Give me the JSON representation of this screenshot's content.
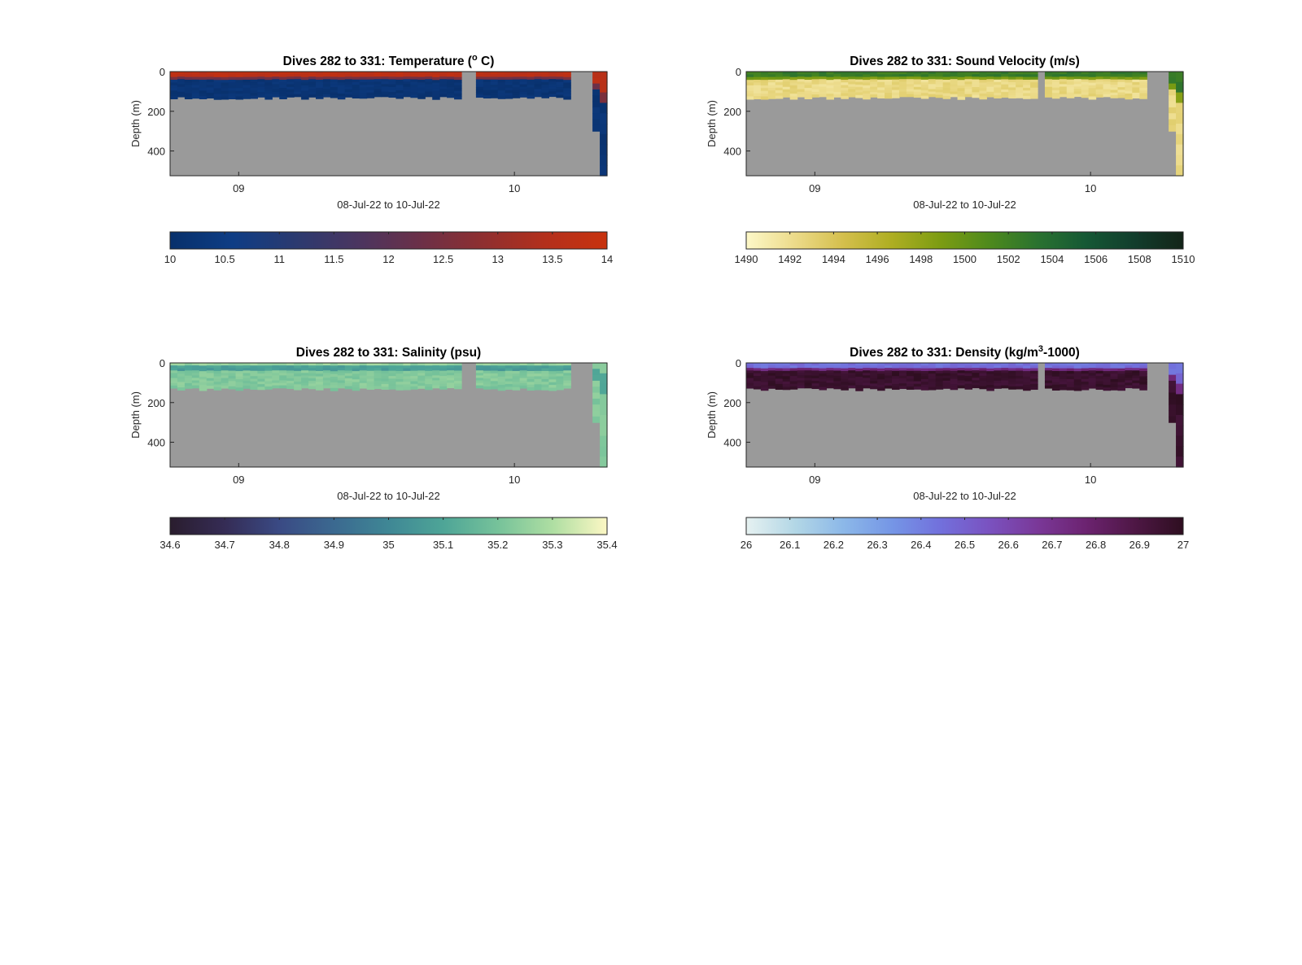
{
  "figure": {
    "background": "#ffffff"
  },
  "chart_data": [
    {
      "type": "heatmap",
      "title_main": "Dives 282 to 331: Temperature (",
      "title_sup": "o",
      "title_tail": " C)",
      "xlabel": "08-Jul-22 to 10-Jul-22",
      "ylabel": "Depth (m)",
      "xticks": [
        "09",
        "10"
      ],
      "yticks": [
        0,
        200,
        400
      ],
      "ylim": [
        525,
        0
      ],
      "colorbar_ticks": [
        "10",
        "10.5",
        "11",
        "11.5",
        "12",
        "12.5",
        "13",
        "13.5",
        "14"
      ],
      "colorbar_range": [
        10,
        14
      ],
      "colormap": [
        "#08306b",
        "#0e3d85",
        "#2b3a70",
        "#4a3560",
        "#6b3048",
        "#8e2f30",
        "#b3301c",
        "#c8320e"
      ],
      "nodata_color": "#9a9a9a"
    },
    {
      "type": "heatmap",
      "title_main": "Dives 282 to 331: Sound Velocity (m/s)",
      "title_sup": "",
      "title_tail": "",
      "xlabel": "08-Jul-22 to 10-Jul-22",
      "ylabel": "Depth (m)",
      "xticks": [
        "09",
        "10"
      ],
      "yticks": [
        0,
        200,
        400
      ],
      "ylim": [
        525,
        0
      ],
      "colorbar_ticks": [
        "1490",
        "1492",
        "1494",
        "1496",
        "1498",
        "1500",
        "1502",
        "1504",
        "1506",
        "1508",
        "1510"
      ],
      "colorbar_range": [
        1490,
        1510
      ],
      "colormap": [
        "#fdf8c8",
        "#ecdb8a",
        "#d4bf4c",
        "#aeae22",
        "#7c9c12",
        "#4e8a1c",
        "#2a7230",
        "#155835",
        "#123d2c",
        "#132418"
      ],
      "nodata_color": "#9a9a9a"
    },
    {
      "type": "heatmap",
      "title_main": "Dives 282 to 331: Salinity (psu)",
      "title_sup": "",
      "title_tail": "",
      "xlabel": "08-Jul-22 to 10-Jul-22",
      "ylabel": "Depth (m)",
      "xticks": [
        "09",
        "10"
      ],
      "yticks": [
        0,
        200,
        400
      ],
      "ylim": [
        525,
        0
      ],
      "colorbar_ticks": [
        "34.6",
        "34.7",
        "34.8",
        "34.9",
        "35",
        "35.1",
        "35.2",
        "35.3",
        "35.4"
      ],
      "colorbar_range": [
        34.6,
        35.4
      ],
      "colormap": [
        "#2a1d2e",
        "#352c55",
        "#3a4a84",
        "#3b6990",
        "#3f8795",
        "#4ea597",
        "#76c29a",
        "#aedea2",
        "#fcf7c4"
      ],
      "nodata_color": "#9a9a9a"
    },
    {
      "type": "heatmap",
      "title_main": "Dives 282 to 331: Density (kg/m",
      "title_sup": "3",
      "title_tail": "-1000)",
      "xlabel": "08-Jul-22 to 10-Jul-22",
      "ylabel": "Depth (m)",
      "xticks": [
        "09",
        "10"
      ],
      "yticks": [
        0,
        200,
        400
      ],
      "ylim": [
        525,
        0
      ],
      "colorbar_ticks": [
        "26",
        "26.1",
        "26.2",
        "26.3",
        "26.4",
        "26.5",
        "26.6",
        "26.7",
        "26.8",
        "26.9",
        "27"
      ],
      "colorbar_range": [
        26,
        27
      ],
      "colormap": [
        "#e6f1f1",
        "#b3d7e6",
        "#8cb8e8",
        "#7596e6",
        "#7270dc",
        "#7a52c0",
        "#7a3898",
        "#6c2370",
        "#4e1745",
        "#2e0e20"
      ],
      "nodata_color": "#9a9a9a"
    }
  ]
}
